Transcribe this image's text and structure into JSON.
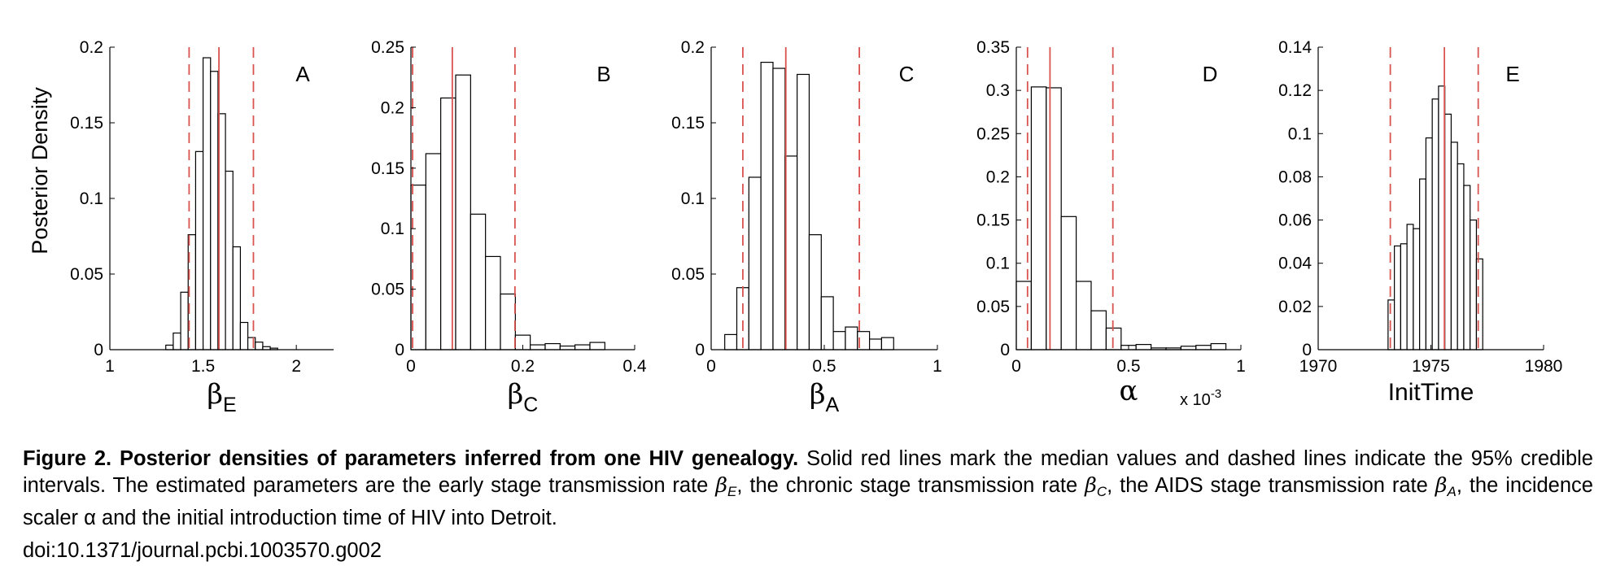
{
  "chart_data": [
    {
      "type": "bar",
      "panel_label": "A",
      "ylabel": "Posterior Density",
      "xlabel_main": "β",
      "xlabel_sub": "E",
      "xlim": [
        1,
        2.2
      ],
      "ylim": [
        0,
        0.2
      ],
      "xticks": [
        1,
        1.5,
        2
      ],
      "xtick_labels": [
        "1",
        "1.5",
        "2"
      ],
      "yticks": [
        0,
        0.05,
        0.1,
        0.15,
        0.2
      ],
      "ytick_labels": [
        "0",
        "0.05",
        "0.1",
        "0.15",
        "0.2"
      ],
      "bin_edges": [
        1.3,
        1.34,
        1.38,
        1.42,
        1.46,
        1.5,
        1.54,
        1.58,
        1.62,
        1.66,
        1.7,
        1.74,
        1.78,
        1.82,
        1.86,
        1.9,
        1.94,
        1.98
      ],
      "values": [
        0.003,
        0.011,
        0.038,
        0.076,
        0.131,
        0.193,
        0.184,
        0.156,
        0.118,
        0.068,
        0.018,
        0.008,
        0.005,
        0.002,
        0.001,
        0,
        0
      ],
      "median": 1.585,
      "ci95": [
        1.425,
        1.77
      ]
    },
    {
      "type": "bar",
      "panel_label": "B",
      "xlabel_main": "β",
      "xlabel_sub": "C",
      "xlim": [
        0,
        0.4
      ],
      "ylim": [
        0,
        0.25
      ],
      "xticks": [
        0,
        0.2,
        0.4
      ],
      "xtick_labels": [
        "0",
        "0.2",
        "0.4"
      ],
      "yticks": [
        0,
        0.05,
        0.1,
        0.15,
        0.2,
        0.25
      ],
      "ytick_labels": [
        "0",
        "0.05",
        "0.1",
        "0.15",
        "0.2",
        "0.25"
      ],
      "bin_edges": [
        0,
        0.0267,
        0.0533,
        0.08,
        0.1067,
        0.1333,
        0.16,
        0.1867,
        0.2133,
        0.24,
        0.2667,
        0.2933,
        0.32,
        0.3467,
        0.3733
      ],
      "values": [
        0.136,
        0.162,
        0.208,
        0.227,
        0.112,
        0.077,
        0.046,
        0.012,
        0.004,
        0.005,
        0.003,
        0.004,
        0.006,
        0
      ],
      "median": 0.074,
      "ci95": [
        0.003,
        0.186
      ]
    },
    {
      "type": "bar",
      "panel_label": "C",
      "xlabel_main": "β",
      "xlabel_sub": "A",
      "xlim": [
        0,
        1
      ],
      "ylim": [
        0,
        0.2
      ],
      "xticks": [
        0,
        0.5,
        1
      ],
      "xtick_labels": [
        "0",
        "0.5",
        "1"
      ],
      "yticks": [
        0,
        0.05,
        0.1,
        0.15,
        0.2
      ],
      "ytick_labels": [
        "0",
        "0.05",
        "0.1",
        "0.15",
        "0.2"
      ],
      "bin_edges": [
        0.06,
        0.1133,
        0.1667,
        0.22,
        0.2733,
        0.3267,
        0.38,
        0.4333,
        0.4867,
        0.54,
        0.5933,
        0.6467,
        0.7,
        0.7533,
        0.8067
      ],
      "values": [
        0.01,
        0.041,
        0.114,
        0.19,
        0.186,
        0.128,
        0.182,
        0.076,
        0.035,
        0.012,
        0.015,
        0.012,
        0.007,
        0.008
      ],
      "median": 0.33,
      "ci95": [
        0.14,
        0.655
      ]
    },
    {
      "type": "bar",
      "panel_label": "D",
      "xlabel_main": "α",
      "x_multiplier": "x 10",
      "x_multiplier_exp": "-3",
      "xlim": [
        0,
        1
      ],
      "ylim": [
        0,
        0.35
      ],
      "xticks": [
        0,
        0.5,
        1
      ],
      "xtick_labels": [
        "0",
        "0.5",
        "1"
      ],
      "yticks": [
        0,
        0.05,
        0.1,
        0.15,
        0.2,
        0.25,
        0.3,
        0.35
      ],
      "ytick_labels": [
        "0",
        "0.05",
        "0.1",
        "0.15",
        "0.2",
        "0.25",
        "0.3",
        "0.35"
      ],
      "bin_edges": [
        0,
        0.0667,
        0.1333,
        0.2,
        0.2667,
        0.3333,
        0.4,
        0.4667,
        0.5333,
        0.6,
        0.6667,
        0.7333,
        0.8,
        0.8667,
        0.9333
      ],
      "values": [
        0.079,
        0.304,
        0.303,
        0.154,
        0.079,
        0.045,
        0.025,
        0.005,
        0.006,
        0.002,
        0.002,
        0.004,
        0.005,
        0.007
      ],
      "median": 0.15,
      "ci95": [
        0.05,
        0.43
      ]
    },
    {
      "type": "bar",
      "panel_label": "E",
      "xlabel_main": "InitTime",
      "xlim": [
        1970,
        1980
      ],
      "ylim": [
        0,
        0.14
      ],
      "xticks": [
        1970,
        1975,
        1980
      ],
      "xtick_labels": [
        "1970",
        "1975",
        "1980"
      ],
      "yticks": [
        0,
        0.02,
        0.04,
        0.06,
        0.08,
        0.1,
        0.12,
        0.14
      ],
      "ytick_labels": [
        "0",
        "0.02",
        "0.04",
        "0.06",
        "0.08",
        "0.1",
        "0.12",
        "0.14"
      ],
      "bin_edges": [
        1973.1,
        1973.38,
        1973.66,
        1973.94,
        1974.22,
        1974.5,
        1974.78,
        1975.06,
        1975.34,
        1975.62,
        1975.9,
        1976.18,
        1976.46,
        1976.74,
        1977.02,
        1977.3
      ],
      "values": [
        0.023,
        0.048,
        0.049,
        0.058,
        0.056,
        0.079,
        0.098,
        0.116,
        0.122,
        0.109,
        0.096,
        0.086,
        0.076,
        0.06,
        0.042
      ],
      "median": 1975.6,
      "ci95": [
        1973.2,
        1977.1
      ]
    }
  ],
  "caption": {
    "title": "Figure 2. Posterior densities of parameters inferred from one HIV genealogy.",
    "t1": " Solid red lines mark the median values and dashed lines indicate the 95% credible intervals. The estimated parameters are the early stage transmission rate ",
    "beta": "β",
    "subE": "E",
    "t2": ", the chronic stage transmission rate ",
    "subC": "C",
    "t3": ", the AIDS stage transmission rate ",
    "subA": "A",
    "t4": ", the incidence scaler ",
    "alpha": "α",
    "t5": " and the initial introduction time of HIV into Detroit."
  },
  "doi": "doi:10.1371/journal.pcbi.1003570.g002",
  "colors": {
    "median_line": "#d9534f",
    "bar_edge": "#000000",
    "bar_fill": "#ffffff"
  }
}
